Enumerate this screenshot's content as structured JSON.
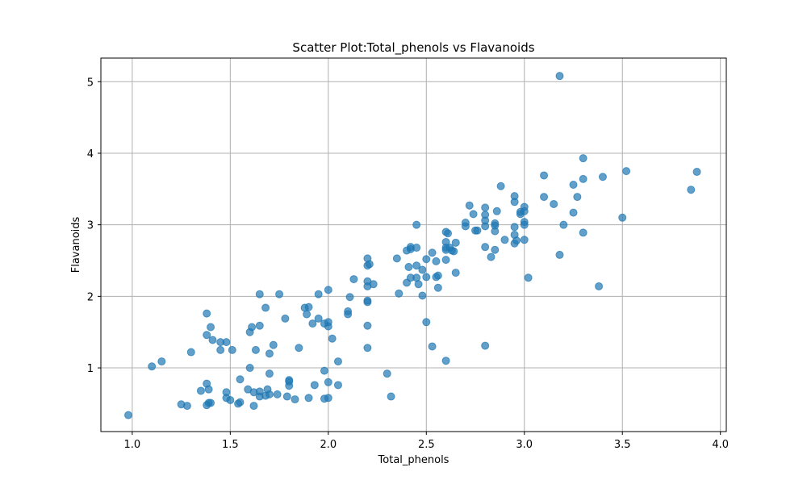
{
  "chart_data": {
    "type": "scatter",
    "title": "Scatter Plot:Total_phenols vs Flavanoids",
    "xlabel": "Total_phenols",
    "ylabel": "Flavanoids",
    "xlim": [
      0.84,
      4.03
    ],
    "ylim": [
      0.11,
      5.33
    ],
    "xticks": [
      1.0,
      1.5,
      2.0,
      2.5,
      3.0,
      3.5,
      4.0
    ],
    "xtick_labels": [
      "1.0",
      "1.5",
      "2.0",
      "2.5",
      "3.0",
      "3.5",
      "4.0"
    ],
    "yticks": [
      1,
      2,
      3,
      4,
      5
    ],
    "ytick_labels": [
      "1",
      "2",
      "3",
      "4",
      "5"
    ],
    "grid": true,
    "color": "#1f77b4",
    "points": [
      [
        0.98,
        0.34
      ],
      [
        1.1,
        1.02
      ],
      [
        1.15,
        1.09
      ],
      [
        1.25,
        0.49
      ],
      [
        1.28,
        0.47
      ],
      [
        1.3,
        1.22
      ],
      [
        1.35,
        0.68
      ],
      [
        1.38,
        0.48
      ],
      [
        1.38,
        0.78
      ],
      [
        1.38,
        1.46
      ],
      [
        1.38,
        1.76
      ],
      [
        1.39,
        0.7
      ],
      [
        1.39,
        0.51
      ],
      [
        1.4,
        0.51
      ],
      [
        1.4,
        1.57
      ],
      [
        1.41,
        1.39
      ],
      [
        1.45,
        1.36
      ],
      [
        1.45,
        1.25
      ],
      [
        1.48,
        1.36
      ],
      [
        1.48,
        0.66
      ],
      [
        1.48,
        0.58
      ],
      [
        1.5,
        0.55
      ],
      [
        1.51,
        1.25
      ],
      [
        1.54,
        0.5
      ],
      [
        1.55,
        0.52
      ],
      [
        1.55,
        0.84
      ],
      [
        1.59,
        0.7
      ],
      [
        1.6,
        1.0
      ],
      [
        1.6,
        1.5
      ],
      [
        1.61,
        1.57
      ],
      [
        1.62,
        0.66
      ],
      [
        1.62,
        0.47
      ],
      [
        1.63,
        1.25
      ],
      [
        1.65,
        0.6
      ],
      [
        1.65,
        0.67
      ],
      [
        1.65,
        1.59
      ],
      [
        1.65,
        2.03
      ],
      [
        1.68,
        1.84
      ],
      [
        1.68,
        0.61
      ],
      [
        1.69,
        0.7
      ],
      [
        1.7,
        0.63
      ],
      [
        1.7,
        0.92
      ],
      [
        1.7,
        1.2
      ],
      [
        1.72,
        1.32
      ],
      [
        1.74,
        0.63
      ],
      [
        1.75,
        2.03
      ],
      [
        1.78,
        1.69
      ],
      [
        1.79,
        0.6
      ],
      [
        1.8,
        0.83
      ],
      [
        1.8,
        0.81
      ],
      [
        1.8,
        0.75
      ],
      [
        1.83,
        0.56
      ],
      [
        1.85,
        1.28
      ],
      [
        1.88,
        1.84
      ],
      [
        1.89,
        1.75
      ],
      [
        1.9,
        0.58
      ],
      [
        1.9,
        1.85
      ],
      [
        1.92,
        1.62
      ],
      [
        1.93,
        0.76
      ],
      [
        1.95,
        1.69
      ],
      [
        1.95,
        2.03
      ],
      [
        1.98,
        0.96
      ],
      [
        1.98,
        0.57
      ],
      [
        1.98,
        1.62
      ],
      [
        2.0,
        0.58
      ],
      [
        2.0,
        0.8
      ],
      [
        2.0,
        1.58
      ],
      [
        2.0,
        1.64
      ],
      [
        2.0,
        2.09
      ],
      [
        2.02,
        1.41
      ],
      [
        2.05,
        1.09
      ],
      [
        2.05,
        0.76
      ],
      [
        2.1,
        1.75
      ],
      [
        2.1,
        1.79
      ],
      [
        2.11,
        1.99
      ],
      [
        2.13,
        2.24
      ],
      [
        2.2,
        1.28
      ],
      [
        2.2,
        1.59
      ],
      [
        2.2,
        1.92
      ],
      [
        2.2,
        1.94
      ],
      [
        2.2,
        2.14
      ],
      [
        2.2,
        2.21
      ],
      [
        2.2,
        2.43
      ],
      [
        2.2,
        2.53
      ],
      [
        2.21,
        2.45
      ],
      [
        2.23,
        2.17
      ],
      [
        2.3,
        0.92
      ],
      [
        2.32,
        0.6
      ],
      [
        2.35,
        2.53
      ],
      [
        2.36,
        2.04
      ],
      [
        2.4,
        2.19
      ],
      [
        2.4,
        2.64
      ],
      [
        2.41,
        2.41
      ],
      [
        2.42,
        2.69
      ],
      [
        2.42,
        2.26
      ],
      [
        2.42,
        2.66
      ],
      [
        2.45,
        2.43
      ],
      [
        2.45,
        2.68
      ],
      [
        2.45,
        3.0
      ],
      [
        2.45,
        2.26
      ],
      [
        2.46,
        2.17
      ],
      [
        2.48,
        2.37
      ],
      [
        2.48,
        2.01
      ],
      [
        2.5,
        2.27
      ],
      [
        2.5,
        2.52
      ],
      [
        2.5,
        1.64
      ],
      [
        2.53,
        2.61
      ],
      [
        2.53,
        1.3
      ],
      [
        2.55,
        2.27
      ],
      [
        2.55,
        2.49
      ],
      [
        2.56,
        2.12
      ],
      [
        2.56,
        2.29
      ],
      [
        2.6,
        2.76
      ],
      [
        2.6,
        2.65
      ],
      [
        2.6,
        2.51
      ],
      [
        2.6,
        2.9
      ],
      [
        2.6,
        2.68
      ],
      [
        2.6,
        1.1
      ],
      [
        2.61,
        2.88
      ],
      [
        2.62,
        2.68
      ],
      [
        2.63,
        2.64
      ],
      [
        2.64,
        2.63
      ],
      [
        2.65,
        2.75
      ],
      [
        2.65,
        2.33
      ],
      [
        2.7,
        3.03
      ],
      [
        2.7,
        2.98
      ],
      [
        2.72,
        3.27
      ],
      [
        2.74,
        3.15
      ],
      [
        2.75,
        2.92
      ],
      [
        2.76,
        2.92
      ],
      [
        2.8,
        1.31
      ],
      [
        2.8,
        2.69
      ],
      [
        2.8,
        2.98
      ],
      [
        2.8,
        3.06
      ],
      [
        2.8,
        3.14
      ],
      [
        2.8,
        3.24
      ],
      [
        2.83,
        2.55
      ],
      [
        2.85,
        2.91
      ],
      [
        2.85,
        2.99
      ],
      [
        2.85,
        3.02
      ],
      [
        2.85,
        2.65
      ],
      [
        2.86,
        3.19
      ],
      [
        2.88,
        3.54
      ],
      [
        2.9,
        2.79
      ],
      [
        2.95,
        2.74
      ],
      [
        2.95,
        2.86
      ],
      [
        2.95,
        2.97
      ],
      [
        2.95,
        3.32
      ],
      [
        2.95,
        3.4
      ],
      [
        2.96,
        2.78
      ],
      [
        2.98,
        3.18
      ],
      [
        2.98,
        3.15
      ],
      [
        3.0,
        3.25
      ],
      [
        3.0,
        3.19
      ],
      [
        3.0,
        3.04
      ],
      [
        3.0,
        3.0
      ],
      [
        3.0,
        2.79
      ],
      [
        3.02,
        2.26
      ],
      [
        3.1,
        3.39
      ],
      [
        3.1,
        3.69
      ],
      [
        3.15,
        3.29
      ],
      [
        3.18,
        2.58
      ],
      [
        3.18,
        5.08
      ],
      [
        3.2,
        3.0
      ],
      [
        3.25,
        3.56
      ],
      [
        3.25,
        3.17
      ],
      [
        3.27,
        3.39
      ],
      [
        3.3,
        3.64
      ],
      [
        3.3,
        3.93
      ],
      [
        3.3,
        2.89
      ],
      [
        3.38,
        2.14
      ],
      [
        3.4,
        3.67
      ],
      [
        3.5,
        3.1
      ],
      [
        3.52,
        3.75
      ],
      [
        3.85,
        3.49
      ],
      [
        3.88,
        3.74
      ]
    ]
  }
}
